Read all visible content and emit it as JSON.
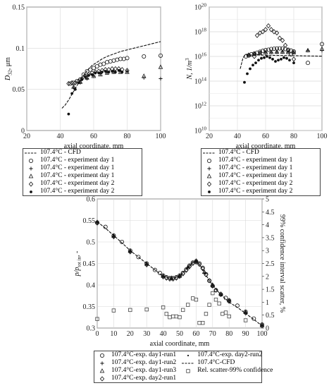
{
  "chart_data": [
    {
      "type": "scatter",
      "xlabel": "axial coordinate, mm",
      "ylabel_main": "D",
      "ylabel_sub": "32",
      "ylabel_unit": ", μm",
      "xlim": [
        20,
        100
      ],
      "ylim": [
        0,
        0.15
      ],
      "xticks": [
        "20",
        "40",
        "60",
        "80",
        "100"
      ],
      "yticks": [
        "0",
        "0.05",
        "0.1",
        "0.15"
      ],
      "series": [
        {
          "name": "107.4°C - CFD",
          "marker": "line",
          "x": [
            41,
            43,
            45,
            47,
            49,
            51,
            53,
            55,
            57,
            59,
            62,
            65,
            68,
            72,
            76,
            80,
            84,
            88,
            92,
            96,
            100
          ],
          "y": [
            0.027,
            0.031,
            0.037,
            0.044,
            0.051,
            0.058,
            0.064,
            0.07,
            0.075,
            0.079,
            0.083,
            0.087,
            0.09,
            0.093,
            0.096,
            0.098,
            0.1,
            0.102,
            0.104,
            0.106,
            0.108
          ]
        },
        {
          "name": "107.4°C - experiment day 1",
          "marker": "circle",
          "x": [
            46,
            48,
            50,
            52,
            54,
            56,
            58,
            60,
            62,
            64,
            66,
            68,
            70,
            72,
            74,
            76,
            78,
            80,
            90,
            100
          ],
          "y": [
            0.057,
            0.058,
            0.06,
            0.062,
            0.068,
            0.072,
            0.074,
            0.076,
            0.078,
            0.08,
            0.081,
            0.083,
            0.084,
            0.085,
            0.086,
            0.087,
            0.087,
            0.088,
            0.09,
            0.091
          ]
        },
        {
          "name": "107.4°C - experiment day 1",
          "marker": "plus",
          "x": [
            48,
            52,
            56,
            60,
            64,
            68,
            72,
            76,
            80,
            90,
            100
          ],
          "y": [
            0.052,
            0.058,
            0.063,
            0.066,
            0.069,
            0.07,
            0.071,
            0.072,
            0.072,
            0.064,
            0.063
          ]
        },
        {
          "name": "107.4°C - experiment day 1",
          "marker": "triangle",
          "x": [
            48,
            52,
            56,
            60,
            64,
            68,
            72,
            76,
            80,
            90,
            100
          ],
          "y": [
            0.053,
            0.059,
            0.064,
            0.066,
            0.068,
            0.07,
            0.071,
            0.071,
            0.071,
            0.066,
            0.077
          ]
        },
        {
          "name": "107.4°C - experiment day 2",
          "marker": "diamond",
          "x": [
            45,
            47,
            49,
            51,
            53,
            55,
            57,
            59,
            61,
            63,
            65,
            67,
            69,
            71,
            73,
            75,
            77,
            80
          ],
          "y": [
            0.057,
            0.058,
            0.058,
            0.06,
            0.063,
            0.066,
            0.068,
            0.07,
            0.071,
            0.072,
            0.073,
            0.074,
            0.074,
            0.075,
            0.075,
            0.075,
            0.074,
            0.073
          ]
        },
        {
          "name": "107.4°C - experiment day 2",
          "marker": "star",
          "x": [
            45,
            47,
            49,
            51,
            53,
            55,
            57,
            59,
            61,
            63,
            65,
            67,
            69,
            71,
            73,
            75,
            77
          ],
          "y": [
            0.02,
            0.045,
            0.05,
            0.058,
            0.062,
            0.065,
            0.067,
            0.068,
            0.07,
            0.07,
            0.071,
            0.072,
            0.071,
            0.072,
            0.071,
            0.073,
            0.071
          ]
        }
      ]
    },
    {
      "type": "scatter",
      "xlabel": "axial coordinate, mm",
      "ylabel": "N, 1/m",
      "ylabel_sup": "3",
      "yscale": "log",
      "xlim": [
        20,
        100
      ],
      "ylim_exp": [
        10,
        20
      ],
      "xticks": [
        "20",
        "40",
        "60",
        "80",
        "100"
      ],
      "yticks_exp": [
        "10",
        "12",
        "14",
        "16",
        "18",
        "20"
      ],
      "series": [
        {
          "name": "107.4°C - CFD",
          "marker": "line",
          "x": [
            42,
            44,
            46,
            48,
            50,
            55,
            60,
            70,
            80,
            90,
            100
          ],
          "y": [
            1000000000000000.0,
            8000000000000000.0,
            1.5e+16,
            1.4e+16,
            1.3e+16,
            1.3e+16,
            1.25e+16,
            1.2e+16,
            1.15e+16,
            1.1e+16,
            1.05e+16
          ]
        },
        {
          "name": "107.4°C - experiment day 1",
          "marker": "circle",
          "x": [
            46,
            48,
            50,
            52,
            54,
            56,
            58,
            60,
            62,
            64,
            66,
            68,
            70,
            72,
            74,
            76,
            78,
            80,
            90,
            100
          ],
          "y": [
            1e+16,
            1.2e+16,
            1.5e+16,
            1.7e+16,
            2e+16,
            2.4e+16,
            2.8e+16,
            3.2e+16,
            3.5e+16,
            4e+16,
            4.2e+16,
            4.4e+16,
            4.5e+16,
            4.4e+16,
            4e+16,
            3.5e+16,
            3e+16,
            2.5e+16,
            3000000000000000.0,
            1e+17
          ]
        },
        {
          "name": "107.4°C - experiment day 1",
          "marker": "plus",
          "x": [
            48,
            52,
            56,
            60,
            64,
            68,
            72,
            76,
            80,
            90,
            100
          ],
          "y": [
            1.2e+16,
            1.5e+16,
            1.8e+16,
            2e+16,
            2.1e+16,
            2.2e+16,
            2.3e+16,
            2.2e+16,
            2.1e+16,
            3e+16,
            3e+16
          ]
        },
        {
          "name": "107.4°C - experiment day 1",
          "marker": "triangle",
          "x": [
            48,
            52,
            56,
            60,
            64,
            68,
            72,
            76,
            80,
            90,
            100
          ],
          "y": [
            1.3e+16,
            1.6e+16,
            1.9e+16,
            2.1e+16,
            2.2e+16,
            2.3e+16,
            2.3e+16,
            2.2e+16,
            2.1e+16,
            3e+16,
            4e+16
          ]
        },
        {
          "name": "107.4°C - experiment day 2",
          "marker": "diamond",
          "x": [
            52,
            54,
            56,
            58,
            60,
            62,
            64,
            66,
            68,
            70,
            72,
            74,
            76,
            78,
            80
          ],
          "y": [
            1e+16,
            5e+17,
            8e+17,
            1e+18,
            1.5e+18,
            3e+18,
            1.5e+18,
            1e+18,
            8e+17,
            3e+17,
            2e+17,
            8e+16,
            3e+16,
            1.5e+16,
            6000000000000000.0
          ]
        },
        {
          "name": "107.4°C - experiment day 2",
          "marker": "star",
          "x": [
            45,
            47,
            49,
            51,
            53,
            55,
            57,
            59,
            61,
            63,
            65,
            67,
            69,
            71,
            73,
            75,
            77,
            80
          ],
          "y": [
            80000000000000.0,
            400000000000000.0,
            1000000000000000.0,
            2000000000000000.0,
            3000000000000000.0,
            5000000000000000.0,
            7000000000000000.0,
            8000000000000000.0,
            1e+16,
            8000000000000000.0,
            6000000000000000.0,
            4000000000000000.0,
            5000000000000000.0,
            6000000000000000.0,
            8000000000000000.0,
            7000000000000000.0,
            5000000000000000.0,
            3000000000000000.0
          ]
        }
      ]
    },
    {
      "type": "scatter",
      "xlabel": "axial coordinate, mm",
      "ylabel_left": "p/p",
      "ylabel_left_sub": "tot in",
      "ylabel_left_suffix": ", -",
      "ylabel_right": "99% confidence interval scatter, %",
      "xlim": [
        0,
        100
      ],
      "ylim": [
        0.3,
        0.6
      ],
      "ylim_right": [
        0,
        5
      ],
      "xticks": [
        "0",
        "10",
        "20",
        "30",
        "40",
        "50",
        "60",
        "70",
        "80",
        "90",
        "100"
      ],
      "yticks": [
        "0.3",
        "0.35",
        "0.4",
        "0.45",
        "0.5",
        "0.55",
        "0.6"
      ],
      "yticks_right": [
        "0",
        "0.5",
        "1",
        "1.5",
        "2",
        "2.5",
        "3",
        "3.5",
        "4",
        "4.5",
        "5"
      ],
      "series": [
        {
          "name": "107.4°C-exp. day1-run1",
          "marker": "circle",
          "x": [
            0,
            5,
            10,
            15,
            20,
            25,
            30,
            35,
            38,
            40,
            42,
            44,
            46,
            48,
            50,
            52,
            54,
            56,
            58,
            60,
            62,
            64,
            66,
            68,
            70,
            72,
            75,
            78,
            80,
            85,
            90,
            95,
            100
          ],
          "y": [
            0.545,
            0.535,
            0.515,
            0.5,
            0.48,
            0.465,
            0.45,
            0.435,
            0.428,
            0.422,
            0.418,
            0.416,
            0.416,
            0.418,
            0.422,
            0.428,
            0.436,
            0.445,
            0.452,
            0.455,
            0.45,
            0.44,
            0.425,
            0.41,
            0.398,
            0.388,
            0.378,
            0.37,
            0.364,
            0.352,
            0.338,
            0.322,
            0.308
          ]
        },
        {
          "name": "107.4°C-exp. day1-run2",
          "marker": "plus",
          "x": [
            0,
            10,
            20,
            30,
            40,
            45,
            50,
            55,
            60,
            65,
            70,
            75,
            80,
            90,
            100
          ],
          "y": [
            0.545,
            0.513,
            0.478,
            0.448,
            0.42,
            0.415,
            0.42,
            0.44,
            0.455,
            0.428,
            0.398,
            0.378,
            0.363,
            0.336,
            0.306
          ]
        },
        {
          "name": "107.4°C-exp. day1-run3",
          "marker": "triangle",
          "x": [
            0,
            10,
            20,
            30,
            40,
            45,
            50,
            55,
            60,
            65,
            70,
            75,
            80,
            90,
            100
          ],
          "y": [
            0.546,
            0.514,
            0.479,
            0.449,
            0.421,
            0.416,
            0.421,
            0.441,
            0.456,
            0.43,
            0.4,
            0.379,
            0.364,
            0.337,
            0.307
          ]
        },
        {
          "name": "107.4°C-exp. day2-run1",
          "marker": "diamond",
          "x": [
            0,
            10,
            20,
            30,
            40,
            42,
            44,
            46,
            48,
            50,
            52,
            54,
            56,
            58,
            60,
            62,
            64,
            66,
            68,
            70,
            72,
            75,
            80,
            90,
            100
          ],
          "y": [
            0.544,
            0.512,
            0.477,
            0.447,
            0.419,
            0.416,
            0.414,
            0.414,
            0.416,
            0.42,
            0.426,
            0.434,
            0.443,
            0.45,
            0.453,
            0.448,
            0.438,
            0.424,
            0.41,
            0.398,
            0.388,
            0.378,
            0.362,
            0.335,
            0.305
          ]
        },
        {
          "name": "107.4°C-exp. day2-run2",
          "marker": "dot",
          "x": [
            0,
            10,
            20,
            30,
            40,
            45,
            50,
            55,
            60,
            65,
            70,
            75,
            80,
            90,
            100
          ],
          "y": [
            0.545,
            0.513,
            0.478,
            0.448,
            0.42,
            0.415,
            0.421,
            0.441,
            0.454,
            0.427,
            0.399,
            0.378,
            0.363,
            0.336,
            0.306
          ]
        },
        {
          "name": "107.4°C-CFD",
          "marker": "line",
          "x": [
            0,
            5,
            10,
            15,
            20,
            25,
            30,
            35,
            40,
            45,
            50,
            55,
            58,
            60,
            62,
            65,
            68,
            70,
            72,
            75,
            80,
            85,
            90,
            95,
            100
          ],
          "y": [
            0.547,
            0.532,
            0.515,
            0.498,
            0.48,
            0.465,
            0.45,
            0.435,
            0.42,
            0.414,
            0.42,
            0.44,
            0.452,
            0.455,
            0.448,
            0.43,
            0.41,
            0.4,
            0.39,
            0.378,
            0.36,
            0.348,
            0.334,
            0.32,
            0.305
          ]
        },
        {
          "name": "Rel. scatter-99% confidence",
          "marker": "square",
          "axis": "right",
          "x": [
            0,
            10,
            20,
            30,
            40,
            42,
            44,
            46,
            48,
            50,
            52,
            55,
            58,
            60,
            62,
            64,
            66,
            68,
            70,
            72,
            74,
            76,
            78,
            80,
            90,
            100
          ],
          "y": [
            0.35,
            0.68,
            0.7,
            0.72,
            0.8,
            0.55,
            0.42,
            0.45,
            0.45,
            0.42,
            0.7,
            0.9,
            1.15,
            1.1,
            0.2,
            0.2,
            0.55,
            0.9,
            1.35,
            1.1,
            0.95,
            0.55,
            0.6,
            0.45,
            0.3,
            0.1
          ]
        }
      ]
    }
  ]
}
